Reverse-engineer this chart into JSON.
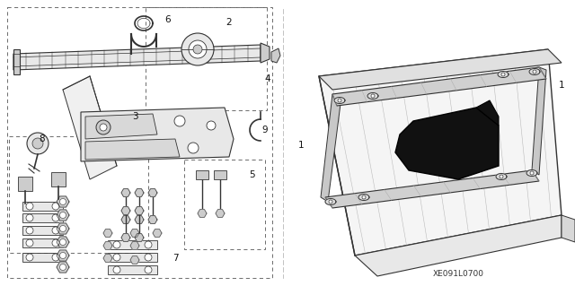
{
  "bg_color": "#ffffff",
  "fig_width": 6.4,
  "fig_height": 3.19,
  "dpi": 100,
  "watermark": "XE091L0700",
  "line_color": "#333333",
  "dash_color": "#666666",
  "fill_light": "#e8e8e8",
  "fill_mid": "#cccccc",
  "fill_dark": "#999999",
  "font_size": 7.5
}
